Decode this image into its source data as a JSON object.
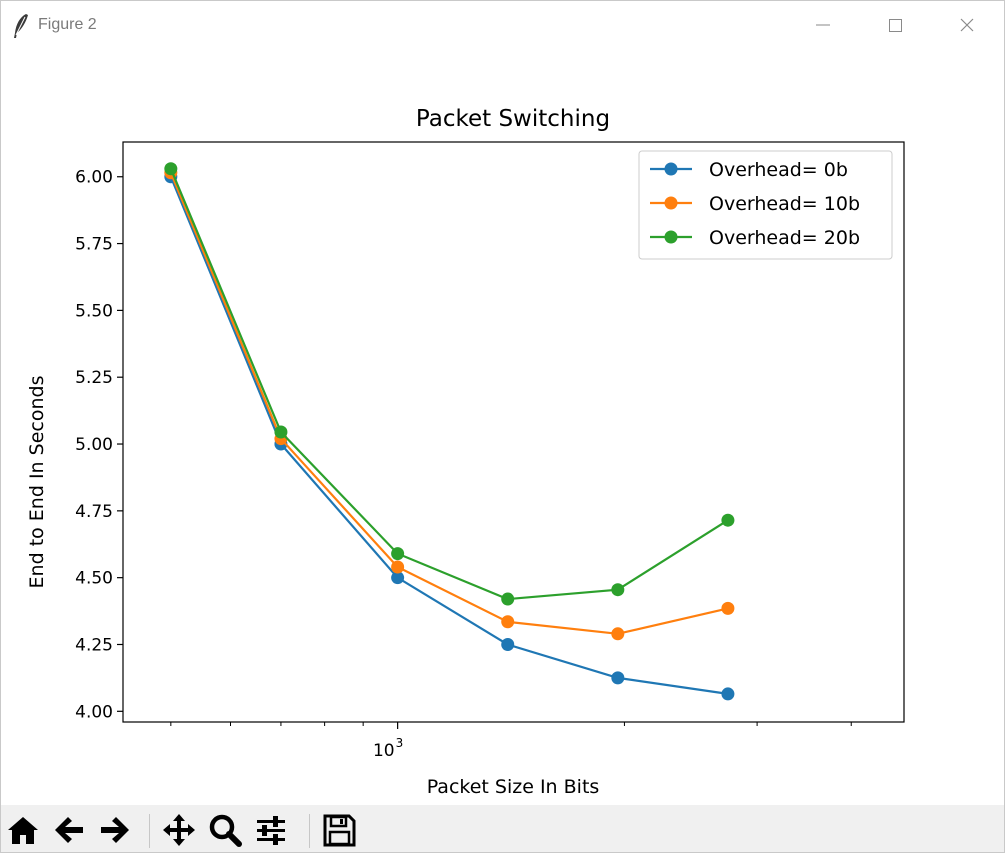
{
  "window": {
    "title": "Figure 2"
  },
  "colors": {
    "series": [
      "#1f77b4",
      "#ff7f0e",
      "#2ca02c"
    ]
  },
  "toolbar": {
    "icons": [
      "home-icon",
      "back-arrow-icon",
      "forward-arrow-icon",
      "pan-icon",
      "zoom-icon",
      "configure-subplots-icon",
      "save-icon"
    ]
  },
  "chart_data": {
    "type": "line",
    "title": "Packet Switching",
    "xlabel": "Packet Size In Bits",
    "ylabel": "End to End In Seconds",
    "xscale": "log",
    "yticks": [
      "4.00",
      "4.25",
      "4.50",
      "4.75",
      "5.00",
      "5.25",
      "5.50",
      "5.75",
      "6.00"
    ],
    "ytick_values": [
      4.0,
      4.25,
      4.5,
      4.75,
      5.0,
      5.25,
      5.5,
      5.75,
      6.0
    ],
    "xticks": [
      {
        "value": 1000,
        "base": "10",
        "exp": "3"
      }
    ],
    "ylim": [
      3.96,
      6.13
    ],
    "xlim": [
      432,
      4700
    ],
    "x": [
      500,
      700,
      1000,
      1400,
      1960,
      2744
    ],
    "series": [
      {
        "name": "Overhead= 0b",
        "values": [
          6.0,
          5.0,
          4.5,
          4.25,
          4.125,
          4.065
        ]
      },
      {
        "name": "Overhead= 10b",
        "values": [
          6.015,
          5.02,
          4.54,
          4.335,
          4.29,
          4.385
        ]
      },
      {
        "name": "Overhead= 20b",
        "values": [
          6.03,
          5.045,
          4.59,
          4.42,
          4.455,
          4.715
        ]
      }
    ],
    "legend": "top-right",
    "grid": false
  }
}
